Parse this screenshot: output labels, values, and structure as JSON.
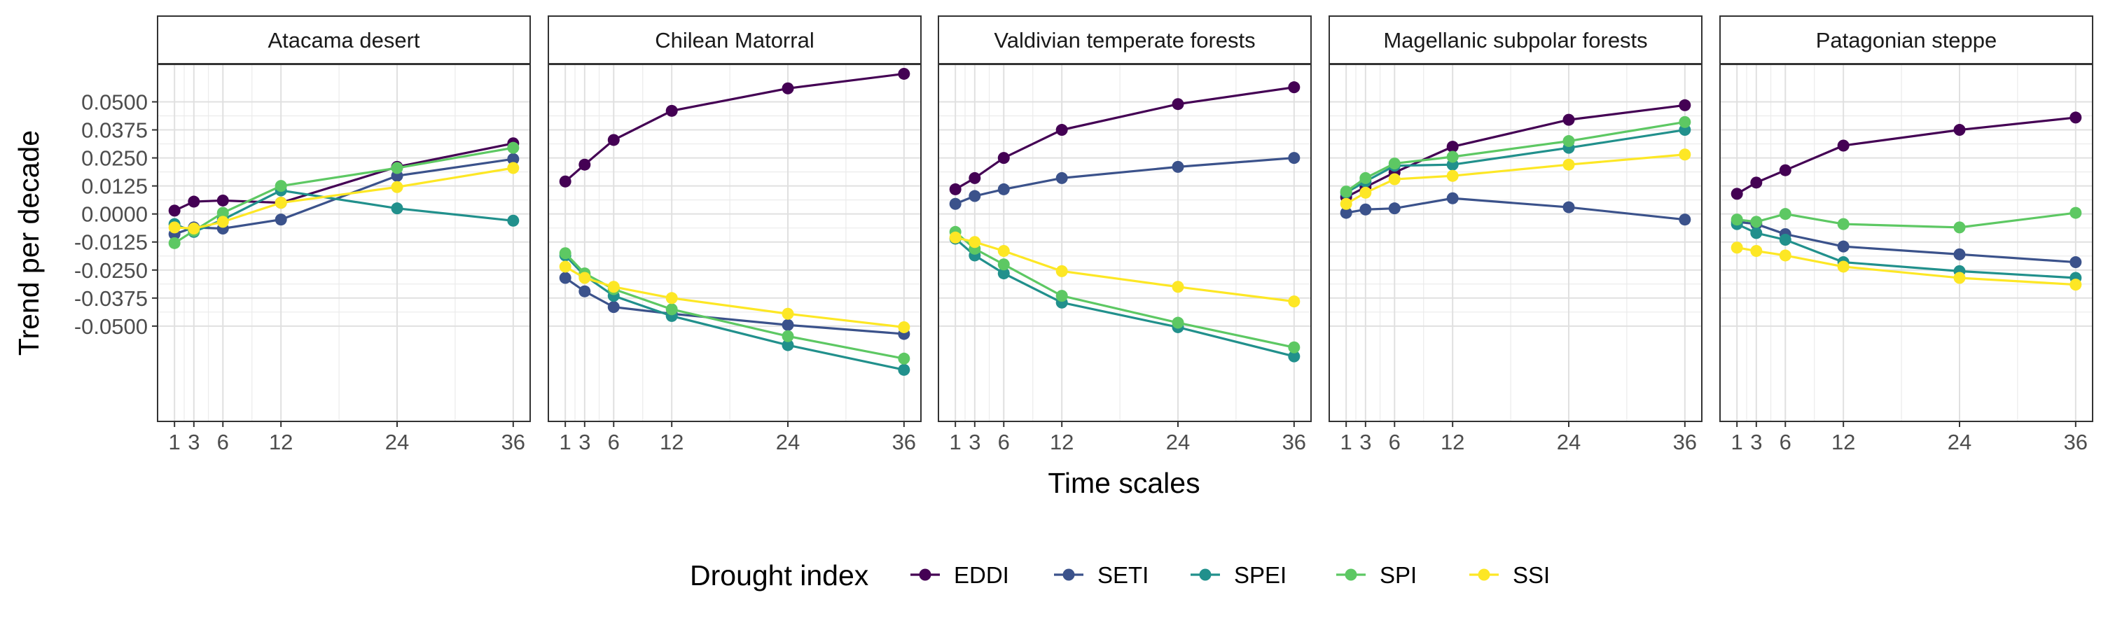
{
  "chart_data": {
    "type": "line",
    "xlabel": "Time scales",
    "ylabel": "Trend per decade",
    "x": [
      1,
      3,
      6,
      12,
      24,
      36
    ],
    "x_ticks": [
      "1",
      "3",
      "6",
      "12",
      "24",
      "36"
    ],
    "xlim": [
      -0.75,
      37.75
    ],
    "ylim": [
      -0.0925,
      0.0667
    ],
    "y_ticks": [
      0.05,
      0.0375,
      0.025,
      0.0125,
      0.0,
      -0.0125,
      -0.025,
      -0.0375,
      -0.05
    ],
    "y_tick_labels": [
      "0.0500",
      "0.0375",
      "0.0250",
      "0.0125",
      "0.0000",
      "-0.0125",
      "-0.0250",
      "-0.0375",
      "-0.0500"
    ],
    "grid": true,
    "legend_title": "Drought index",
    "legend_position": "bottom",
    "series_colors": {
      "EDDI": "#440154",
      "SETI": "#3B528B",
      "SPEI": "#21908C",
      "SPI": "#5DC863",
      "SSI": "#FDE725"
    },
    "panels": [
      {
        "title": "Atacama desert",
        "series": [
          {
            "name": "EDDI",
            "values": [
              0.0015,
              0.0055,
              0.006,
              0.005,
              0.021,
              0.0315
            ]
          },
          {
            "name": "SETI",
            "values": [
              -0.009,
              -0.006,
              -0.0065,
              -0.0025,
              0.017,
              0.0245
            ]
          },
          {
            "name": "SPEI",
            "values": [
              -0.0045,
              -0.008,
              -0.0025,
              0.0105,
              0.0025,
              -0.003
            ]
          },
          {
            "name": "SPI",
            "values": [
              -0.013,
              -0.0075,
              0.0005,
              0.0125,
              0.0205,
              0.0295
            ]
          },
          {
            "name": "SSI",
            "values": [
              -0.006,
              -0.0065,
              -0.0035,
              0.005,
              0.012,
              0.0205
            ]
          }
        ]
      },
      {
        "title": "Chilean Matorral",
        "series": [
          {
            "name": "EDDI",
            "values": [
              0.0145,
              0.022,
              0.033,
              0.046,
              0.056,
              0.0625
            ]
          },
          {
            "name": "SETI",
            "values": [
              -0.0285,
              -0.0345,
              -0.0415,
              -0.0445,
              -0.0495,
              -0.0535
            ]
          },
          {
            "name": "SPEI",
            "values": [
              -0.0185,
              -0.0275,
              -0.0365,
              -0.0455,
              -0.0585,
              -0.0695
            ]
          },
          {
            "name": "SPI",
            "values": [
              -0.0175,
              -0.0265,
              -0.0335,
              -0.0425,
              -0.0545,
              -0.0645
            ]
          },
          {
            "name": "SSI",
            "values": [
              -0.0235,
              -0.0285,
              -0.0325,
              -0.0375,
              -0.0445,
              -0.0505
            ]
          }
        ]
      },
      {
        "title": "Valdivian temperate forests",
        "series": [
          {
            "name": "EDDI",
            "values": [
              0.011,
              0.016,
              0.025,
              0.0375,
              0.049,
              0.0565
            ]
          },
          {
            "name": "SETI",
            "values": [
              0.0045,
              0.008,
              0.011,
              0.016,
              0.021,
              0.025
            ]
          },
          {
            "name": "SPEI",
            "values": [
              -0.011,
              -0.0185,
              -0.0265,
              -0.0395,
              -0.0505,
              -0.0635
            ]
          },
          {
            "name": "SPI",
            "values": [
              -0.008,
              -0.0155,
              -0.0225,
              -0.0365,
              -0.0485,
              -0.0595
            ]
          },
          {
            "name": "SSI",
            "values": [
              -0.0105,
              -0.0125,
              -0.0165,
              -0.0255,
              -0.0325,
              -0.039
            ]
          }
        ]
      },
      {
        "title": "Magellanic subpolar forests",
        "series": [
          {
            "name": "EDDI",
            "values": [
              0.0075,
              0.012,
              0.0185,
              0.03,
              0.042,
              0.0485
            ]
          },
          {
            "name": "SETI",
            "values": [
              0.0005,
              0.002,
              0.0025,
              0.007,
              0.003,
              -0.0025
            ]
          },
          {
            "name": "SPEI",
            "values": [
              0.0095,
              0.0145,
              0.0215,
              0.022,
              0.0295,
              0.0375
            ]
          },
          {
            "name": "SPI",
            "values": [
              0.01,
              0.016,
              0.0225,
              0.0255,
              0.0325,
              0.041
            ]
          },
          {
            "name": "SSI",
            "values": [
              0.0045,
              0.0095,
              0.0155,
              0.017,
              0.022,
              0.0265
            ]
          }
        ]
      },
      {
        "title": "Patagonian steppe",
        "series": [
          {
            "name": "EDDI",
            "values": [
              0.009,
              0.014,
              0.0195,
              0.0305,
              0.0375,
              0.043
            ]
          },
          {
            "name": "SETI",
            "values": [
              -0.0035,
              -0.0045,
              -0.009,
              -0.0145,
              -0.018,
              -0.0215
            ]
          },
          {
            "name": "SPEI",
            "values": [
              -0.0045,
              -0.0085,
              -0.0115,
              -0.0215,
              -0.0255,
              -0.0285
            ]
          },
          {
            "name": "SPI",
            "values": [
              -0.0025,
              -0.0035,
              0.0,
              -0.0045,
              -0.006,
              0.0005
            ]
          },
          {
            "name": "SSI",
            "values": [
              -0.015,
              -0.0165,
              -0.0185,
              -0.0235,
              -0.0285,
              -0.0315
            ]
          }
        ]
      }
    ]
  }
}
